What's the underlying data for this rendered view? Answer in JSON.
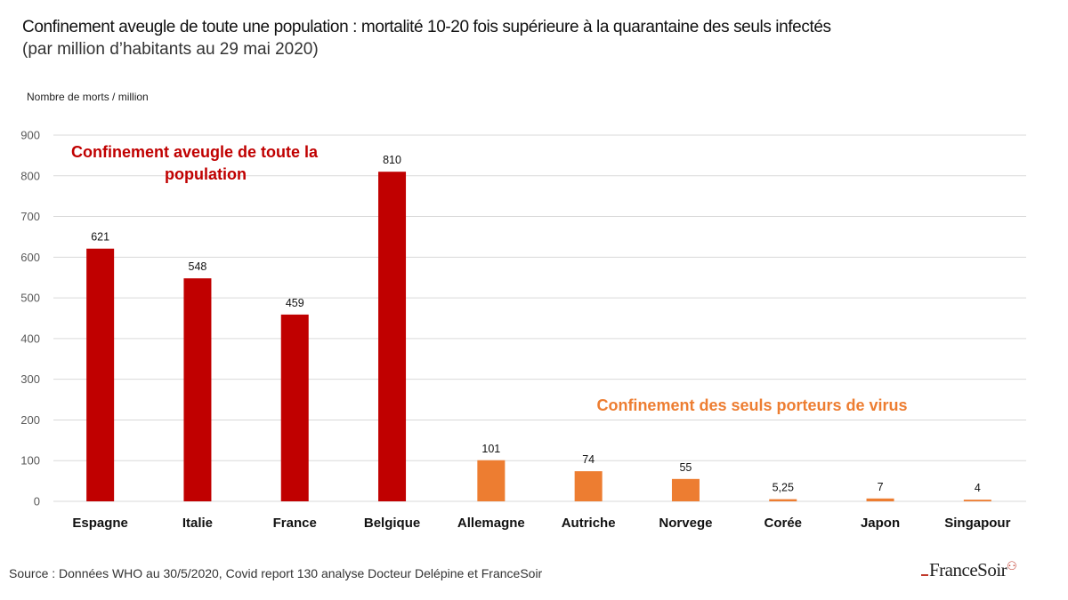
{
  "header": {
    "title": "Confinement aveugle de toute une population : mortalité 10-20 fois supérieure  à la quarantaine des seuls infectés",
    "subtitle": "(par million d’habitants au 29 mai 2020)"
  },
  "footer": {
    "source": "Source : Données WHO au 30/5/2020, Covid report 130 analyse Docteur Delépine et FranceSoir",
    "logo_text": "FranceSoir"
  },
  "colors": {
    "group_lockdown": "#c00000",
    "group_quarantine": "#ed7d31",
    "gridline": "#d9d9d9"
  },
  "chart_data": {
    "type": "bar",
    "title": "Confinement aveugle de toute une population : mortalité 10-20 fois supérieure  à la quarantaine des seuls infectés",
    "subtitle": "(par million d’habitants au 29 mai 2020)",
    "xlabel": "",
    "ylabel": "Nombre de morts / million",
    "ylim": [
      0,
      900
    ],
    "yticks": [
      0,
      100,
      200,
      300,
      400,
      500,
      600,
      700,
      800,
      900
    ],
    "grid": true,
    "categories": [
      "Espagne",
      "Italie",
      "France",
      "Belgique",
      "Allemagne",
      "Autriche",
      "Norvege",
      "Corée",
      "Japon",
      "Singapour"
    ],
    "values": [
      621,
      548,
      459,
      810,
      101,
      74,
      55,
      5.25,
      7,
      4
    ],
    "data_labels": [
      "621",
      "548",
      "459",
      "810",
      "101",
      "74",
      "55",
      "5,25",
      "7",
      "4"
    ],
    "groups": [
      {
        "name": "Confinement aveugle de toute la population",
        "categories": [
          "Espagne",
          "Italie",
          "France",
          "Belgique"
        ],
        "color": "#c00000"
      },
      {
        "name": "Confinement des seuls porteurs de virus",
        "categories": [
          "Allemagne",
          "Autriche",
          "Norvege",
          "Corée",
          "Japon",
          "Singapour"
        ],
        "color": "#ed7d31"
      }
    ],
    "annotations": [
      {
        "text_lines": [
          "Confinement aveugle de toute la",
          "population"
        ],
        "color": "#c00000",
        "near": "top-left"
      },
      {
        "text_lines": [
          "Confinement des seuls porteurs de virus"
        ],
        "color": "#ed7d31",
        "near": "middle-right"
      }
    ]
  }
}
